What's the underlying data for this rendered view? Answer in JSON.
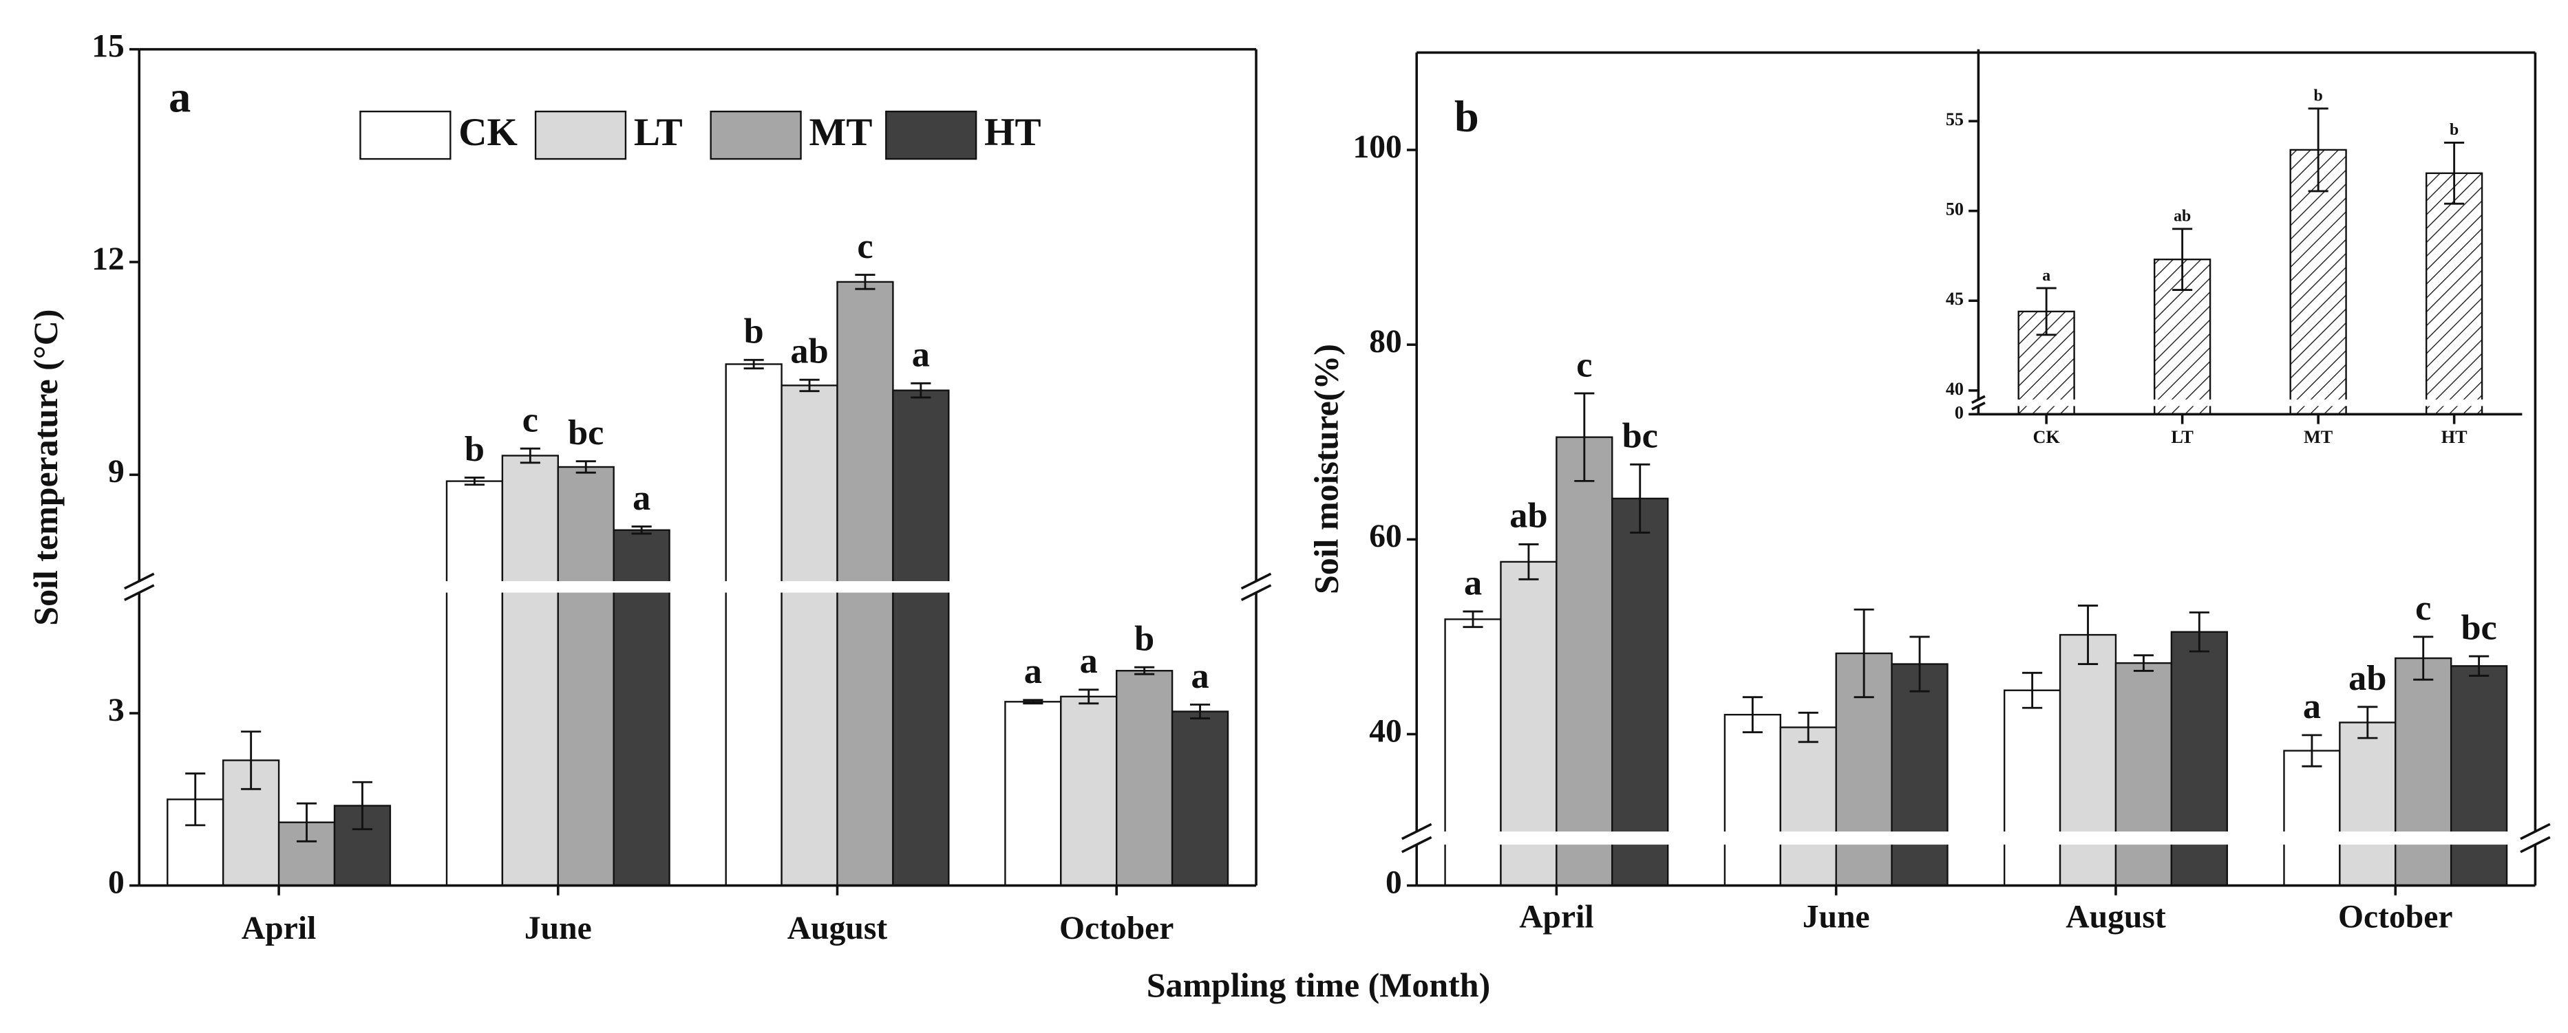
{
  "xlabel": "Sampling time (Month)",
  "chart_data": [
    {
      "type": "bar",
      "panel_label": "a",
      "ylabel": "Soil temperature (°C)",
      "categories": [
        "April",
        "June",
        "August",
        "October"
      ],
      "ylim": [
        0,
        15
      ],
      "ybreak": [
        5.1,
        7.5
      ],
      "yticks": [
        0,
        3,
        9,
        12,
        15
      ],
      "legend": "top",
      "series": [
        {
          "name": "CK",
          "color": "#ffffff",
          "values": [
            1.5,
            8.91,
            10.56,
            3.2
          ],
          "errors": [
            0.45,
            0.05,
            0.06,
            0.03
          ],
          "letters": [
            null,
            "b",
            "b",
            "a"
          ]
        },
        {
          "name": "LT",
          "color": "#d9d9d9",
          "values": [
            2.18,
            9.27,
            10.26,
            3.29
          ],
          "errors": [
            0.5,
            0.1,
            0.08,
            0.12
          ],
          "letters": [
            null,
            "c",
            "ab",
            "a"
          ]
        },
        {
          "name": "MT",
          "color": "#a6a6a6",
          "values": [
            1.1,
            9.11,
            11.72,
            3.74
          ],
          "errors": [
            0.33,
            0.08,
            0.1,
            0.06
          ],
          "letters": [
            null,
            "bc",
            "c",
            "b"
          ]
        },
        {
          "name": "HT",
          "color": "#404040",
          "values": [
            1.39,
            8.22,
            10.19,
            3.03
          ],
          "errors": [
            0.41,
            0.05,
            0.1,
            0.12
          ],
          "letters": [
            null,
            "a",
            "a",
            "a"
          ]
        }
      ]
    },
    {
      "type": "bar",
      "panel_label": "b",
      "ylabel": "Soil moisture(%)",
      "categories": [
        "April",
        "June",
        "August",
        "October"
      ],
      "ylim": [
        0,
        110
      ],
      "ybreak": [
        3,
        30
      ],
      "yticks": [
        0,
        40,
        60,
        80,
        100
      ],
      "series": [
        {
          "name": "CK",
          "color": "#ffffff",
          "values": [
            51.8,
            42,
            44.5,
            38.3
          ],
          "errors": [
            0.8,
            1.8,
            1.8,
            1.6
          ],
          "letters": [
            "a",
            null,
            null,
            "a"
          ]
        },
        {
          "name": "LT",
          "color": "#d9d9d9",
          "values": [
            57.7,
            40.7,
            50.2,
            41.2
          ],
          "errors": [
            1.8,
            1.5,
            3,
            1.6
          ],
          "letters": [
            "ab",
            null,
            null,
            "ab"
          ]
        },
        {
          "name": "MT",
          "color": "#a6a6a6",
          "values": [
            70.5,
            48.3,
            47.3,
            47.8
          ],
          "errors": [
            4.5,
            4.5,
            0.8,
            2.2
          ],
          "letters": [
            "c",
            null,
            null,
            "c"
          ]
        },
        {
          "name": "HT",
          "color": "#404040",
          "values": [
            64.2,
            47.2,
            50.5,
            47
          ],
          "errors": [
            3.5,
            2.8,
            2,
            1
          ],
          "letters": [
            "bc",
            null,
            null,
            "bc"
          ]
        }
      ]
    },
    {
      "type": "bar",
      "categories": [
        "CK",
        "LT",
        "MT",
        "HT"
      ],
      "ylim": [
        0,
        59
      ],
      "ybreak": [
        1,
        39.5
      ],
      "yticks": [
        0,
        40,
        45,
        50,
        55
      ],
      "series": [
        {
          "color": "#ffffff",
          "hatch": true,
          "values": [
            44.4,
            47.3,
            53.4,
            52.1
          ],
          "errors": [
            1.3,
            1.7,
            2.3,
            1.7
          ],
          "letters": [
            "a",
            "ab",
            "b",
            "b"
          ]
        }
      ]
    }
  ]
}
